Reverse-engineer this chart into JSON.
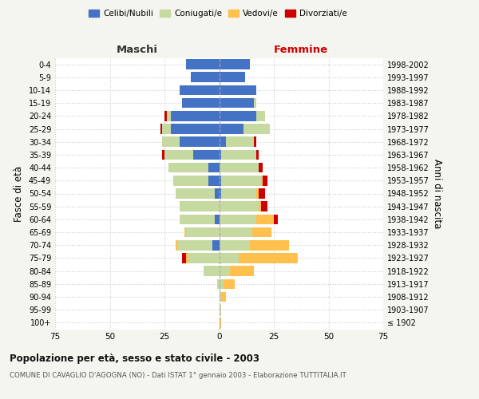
{
  "age_groups": [
    "100+",
    "95-99",
    "90-94",
    "85-89",
    "80-84",
    "75-79",
    "70-74",
    "65-69",
    "60-64",
    "55-59",
    "50-54",
    "45-49",
    "40-44",
    "35-39",
    "30-34",
    "25-29",
    "20-24",
    "15-19",
    "10-14",
    "5-9",
    "0-4"
  ],
  "birth_years": [
    "≤ 1902",
    "1903-1907",
    "1908-1912",
    "1913-1917",
    "1918-1922",
    "1923-1927",
    "1928-1932",
    "1933-1937",
    "1938-1942",
    "1943-1947",
    "1948-1952",
    "1953-1957",
    "1958-1962",
    "1963-1967",
    "1968-1972",
    "1973-1977",
    "1978-1982",
    "1983-1987",
    "1988-1992",
    "1993-1997",
    "1998-2002"
  ],
  "males": {
    "celibi": [
      0,
      0,
      0,
      0,
      0,
      0,
      3,
      0,
      2,
      0,
      2,
      5,
      5,
      12,
      18,
      22,
      22,
      17,
      18,
      13,
      15
    ],
    "coniugati": [
      0,
      0,
      0,
      1,
      7,
      14,
      16,
      15,
      16,
      18,
      18,
      16,
      18,
      13,
      8,
      4,
      2,
      0,
      0,
      0,
      0
    ],
    "vedovi": [
      0,
      0,
      0,
      0,
      0,
      1,
      1,
      1,
      0,
      0,
      0,
      0,
      0,
      0,
      0,
      0,
      0,
      0,
      0,
      0,
      0
    ],
    "divorziati": [
      0,
      0,
      0,
      0,
      0,
      2,
      0,
      0,
      0,
      0,
      0,
      0,
      0,
      1,
      0,
      1,
      1,
      0,
      0,
      0,
      0
    ]
  },
  "females": {
    "nubili": [
      0,
      0,
      0,
      0,
      0,
      0,
      0,
      0,
      0,
      0,
      1,
      1,
      0,
      1,
      3,
      11,
      17,
      16,
      17,
      12,
      14
    ],
    "coniugate": [
      0,
      1,
      1,
      2,
      5,
      9,
      14,
      15,
      17,
      18,
      16,
      18,
      18,
      16,
      13,
      12,
      4,
      1,
      0,
      0,
      0
    ],
    "vedove": [
      1,
      0,
      2,
      5,
      11,
      27,
      18,
      9,
      8,
      1,
      1,
      1,
      0,
      0,
      0,
      0,
      0,
      0,
      0,
      0,
      0
    ],
    "divorziate": [
      0,
      0,
      0,
      0,
      0,
      0,
      0,
      0,
      2,
      3,
      3,
      2,
      2,
      1,
      1,
      0,
      0,
      0,
      0,
      0,
      0
    ]
  },
  "colors": {
    "celibi": "#4472C4",
    "coniugati": "#c5d9a0",
    "vedovi": "#ffc04d",
    "divorziati": "#cc0000"
  },
  "xlim": 75,
  "title": "Popolazione per età, sesso e stato civile - 2003",
  "subtitle": "COMUNE DI CAVAGLIO D'AGOGNA (NO) - Dati ISTAT 1° gennaio 2003 - Elaborazione TUTTITALIA.IT",
  "ylabel": "Fasce di età",
  "ylabel_right": "Anni di nascita",
  "bg_color": "#f5f5f0",
  "plot_bg": "#ffffff",
  "grid_color": "#cccccc"
}
